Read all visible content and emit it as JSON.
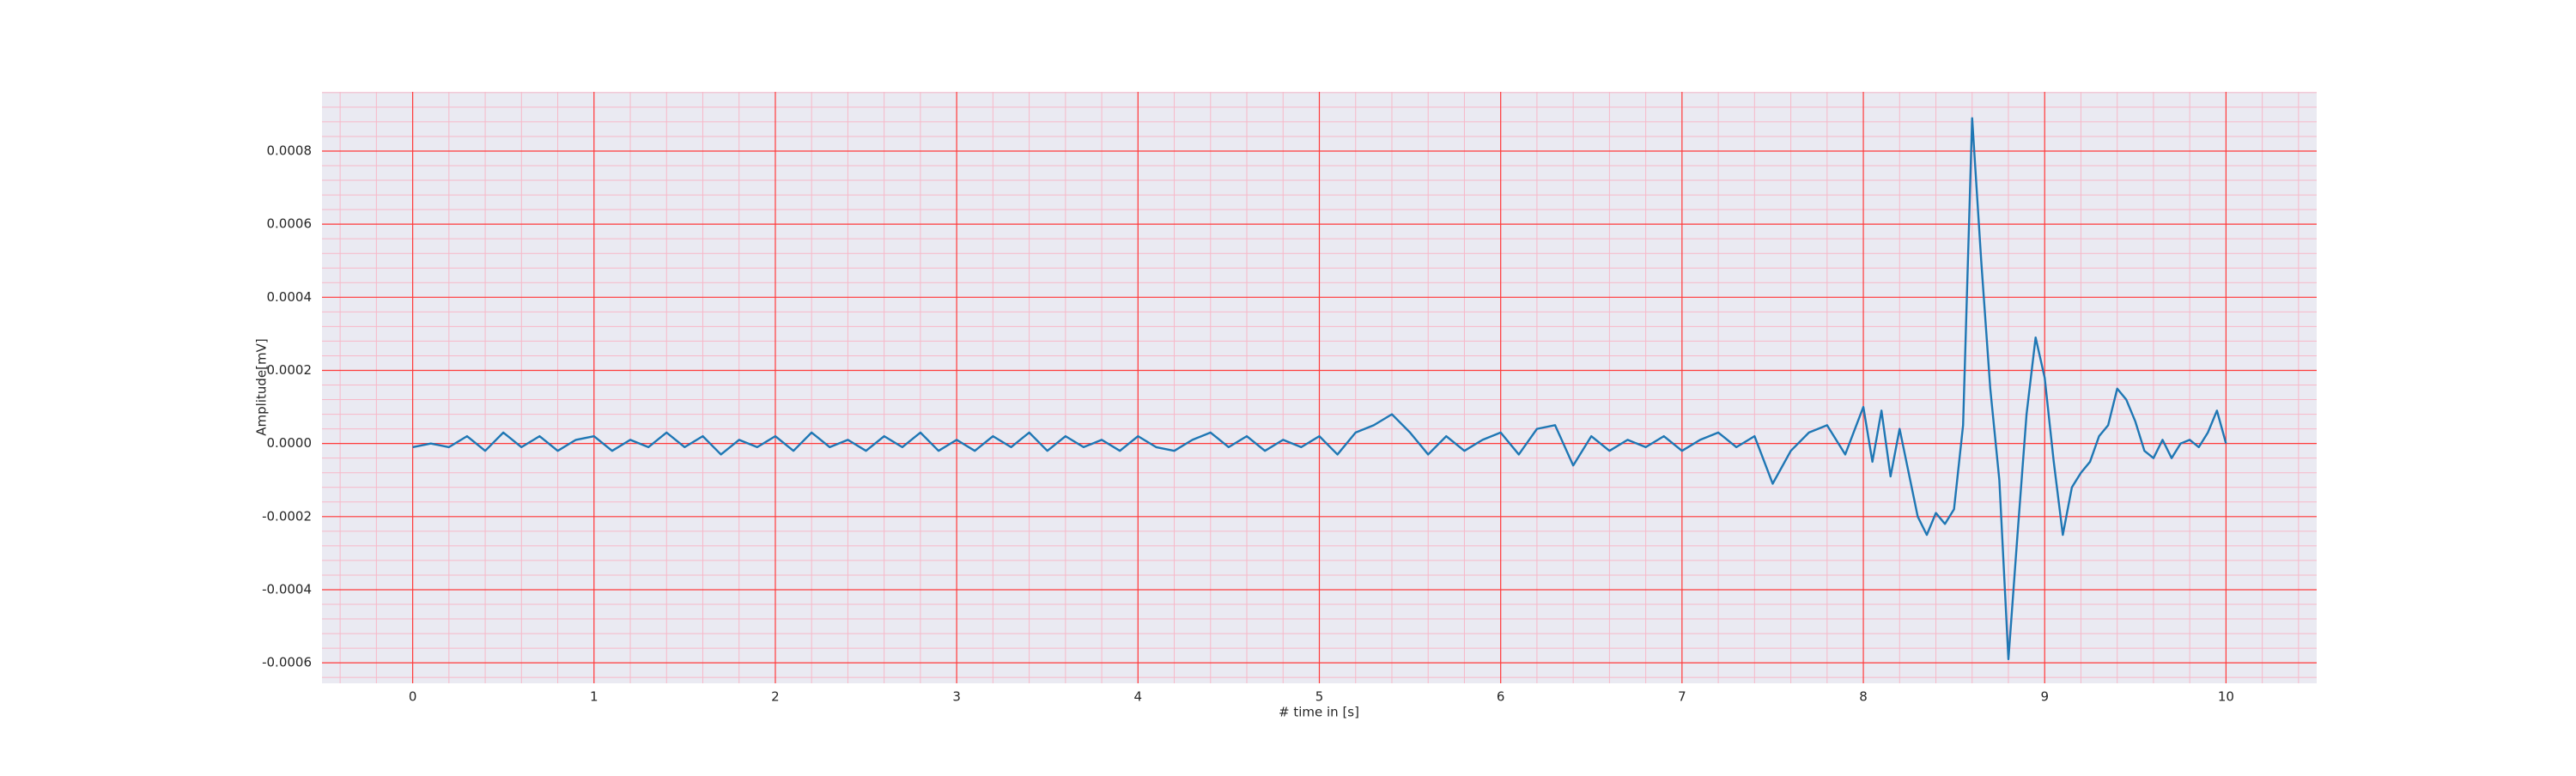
{
  "chart_data": {
    "type": "line",
    "xlabel": "# time in [s]",
    "ylabel": "Amplitude[mV]",
    "x": [
      0.0,
      0.1,
      0.2,
      0.3,
      0.4,
      0.5,
      0.6,
      0.7,
      0.8,
      0.9,
      1.0,
      1.1,
      1.2,
      1.3,
      1.4,
      1.5,
      1.6,
      1.7,
      1.8,
      1.9,
      2.0,
      2.1,
      2.2,
      2.3,
      2.4,
      2.5,
      2.6,
      2.7,
      2.8,
      2.9,
      3.0,
      3.1,
      3.2,
      3.3,
      3.4,
      3.5,
      3.6,
      3.7,
      3.8,
      3.9,
      4.0,
      4.1,
      4.2,
      4.3,
      4.4,
      4.5,
      4.6,
      4.7,
      4.8,
      4.9,
      5.0,
      5.1,
      5.2,
      5.3,
      5.4,
      5.5,
      5.6,
      5.7,
      5.8,
      5.9,
      6.0,
      6.1,
      6.2,
      6.3,
      6.4,
      6.5,
      6.6,
      6.7,
      6.8,
      6.9,
      7.0,
      7.1,
      7.2,
      7.3,
      7.4,
      7.5,
      7.6,
      7.7,
      7.8,
      7.9,
      8.0,
      8.05,
      8.1,
      8.15,
      8.2,
      8.25,
      8.3,
      8.35,
      8.4,
      8.45,
      8.5,
      8.55,
      8.6,
      8.65,
      8.7,
      8.75,
      8.8,
      8.85,
      8.9,
      8.95,
      9.0,
      9.05,
      9.1,
      9.15,
      9.2,
      9.25,
      9.3,
      9.35,
      9.4,
      9.45,
      9.5,
      9.55,
      9.6,
      9.65,
      9.7,
      9.75,
      9.8,
      9.85,
      9.9,
      9.95,
      10.0
    ],
    "values": [
      -1e-05,
      0,
      -1e-05,
      2e-05,
      -2e-05,
      3e-05,
      -1e-05,
      2e-05,
      -2e-05,
      1e-05,
      2e-05,
      -2e-05,
      1e-05,
      -1e-05,
      3e-05,
      -1e-05,
      2e-05,
      -3e-05,
      1e-05,
      -1e-05,
      2e-05,
      -2e-05,
      3e-05,
      -1e-05,
      1e-05,
      -2e-05,
      2e-05,
      -1e-05,
      3e-05,
      -2e-05,
      1e-05,
      -2e-05,
      2e-05,
      -1e-05,
      3e-05,
      -2e-05,
      2e-05,
      -1e-05,
      1e-05,
      -2e-05,
      2e-05,
      -1e-05,
      -2e-05,
      1e-05,
      3e-05,
      -1e-05,
      2e-05,
      -2e-05,
      1e-05,
      -1e-05,
      2e-05,
      -3e-05,
      3e-05,
      5e-05,
      8e-05,
      3e-05,
      -3e-05,
      2e-05,
      -2e-05,
      1e-05,
      3e-05,
      -3e-05,
      4e-05,
      5e-05,
      -6e-05,
      2e-05,
      -2e-05,
      1e-05,
      -1e-05,
      2e-05,
      -2e-05,
      1e-05,
      3e-05,
      -1e-05,
      2e-05,
      -0.00011,
      -2e-05,
      3e-05,
      5e-05,
      -3e-05,
      0.0001,
      -5e-05,
      9e-05,
      -9e-05,
      4e-05,
      -8e-05,
      -0.0002,
      -0.00025,
      -0.00019,
      -0.00022,
      -0.00018,
      5e-05,
      0.00089,
      0.0005,
      0.00015,
      -0.0001,
      -0.00059,
      -0.00025,
      8e-05,
      0.00029,
      0.00018,
      -5e-05,
      -0.00025,
      -0.00012,
      -8e-05,
      -5e-05,
      2e-05,
      5e-05,
      0.00015,
      0.00012,
      6e-05,
      -2e-05,
      -4e-05,
      1e-05,
      -4e-05,
      0,
      1e-05,
      -1e-05,
      3e-05,
      9e-05,
      0
    ],
    "color": "#1f77b4",
    "xlim": [
      -0.5,
      10.5
    ],
    "xticks": [
      0,
      1,
      2,
      3,
      4,
      5,
      6,
      7,
      8,
      9,
      10
    ],
    "ylim": [
      -0.000656,
      0.000962
    ],
    "yticks": [
      {
        "value": -0.0006,
        "label": "-0.0006"
      },
      {
        "value": -0.0004,
        "label": "-0.0004"
      },
      {
        "value": -0.0002,
        "label": "-0.0002"
      },
      {
        "value": 0,
        "label": "0.0000"
      },
      {
        "value": 0.0002,
        "label": "0.0002"
      },
      {
        "value": 0.0004,
        "label": "0.0004"
      },
      {
        "value": 0.0006,
        "label": "0.0006"
      },
      {
        "value": 0.0008,
        "label": "0.0008"
      }
    ],
    "grid": true,
    "grid_color": "#ff3b3b",
    "minor_grid": true,
    "minor_grid_color": "#f7b8c8"
  }
}
